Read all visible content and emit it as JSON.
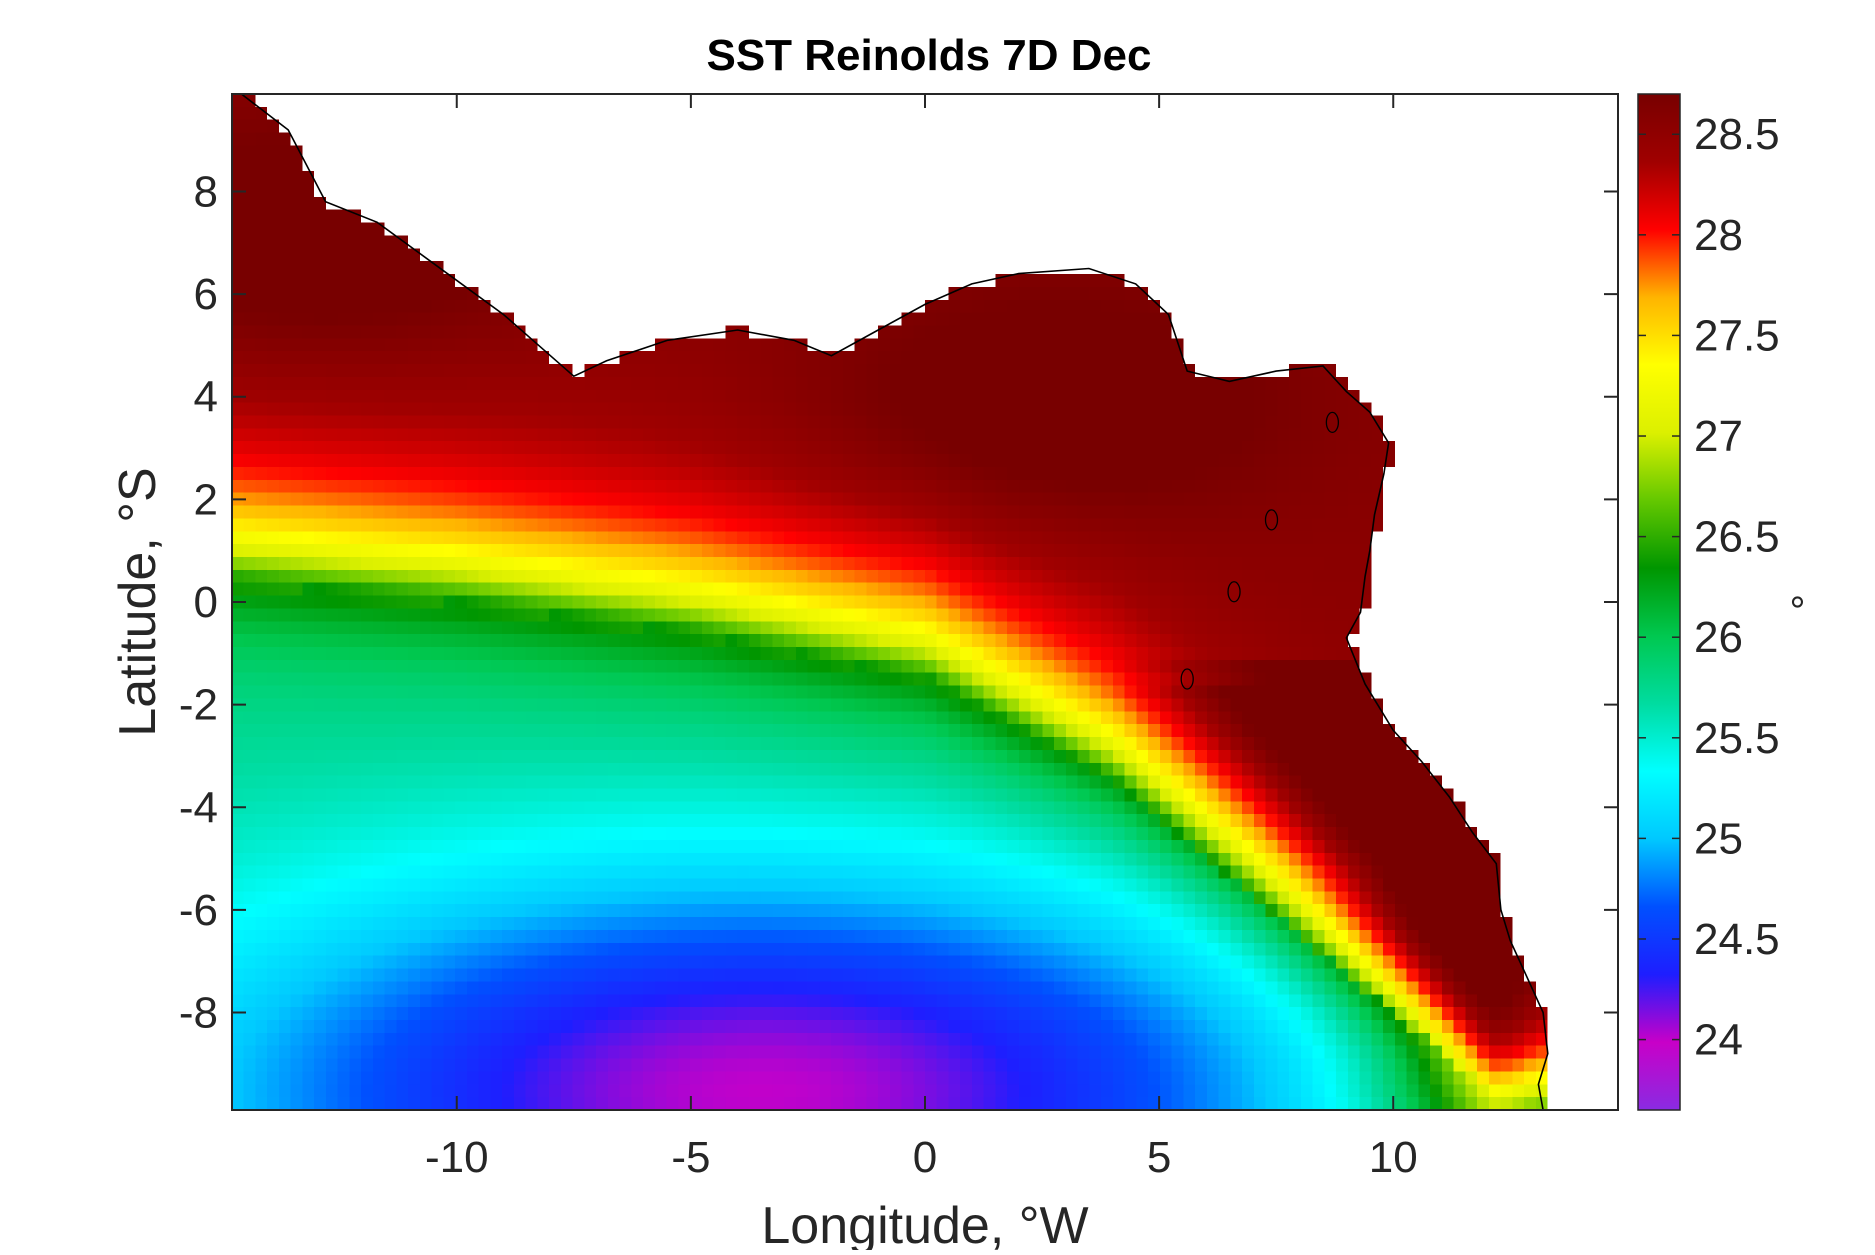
{
  "chart_data": {
    "type": "heatmap",
    "title": "SST Reinolds 7D Dec",
    "xlabel": "Longitude, °W",
    "ylabel": "Latitude, °S",
    "colorbar_label": "°",
    "xlim": [
      -14.8,
      14.8
    ],
    "ylim": [
      -9.9,
      9.9
    ],
    "xticks": [
      -10,
      -5,
      0,
      5,
      10
    ],
    "yticks": [
      -8,
      -6,
      -4,
      -2,
      0,
      2,
      4,
      6,
      8
    ],
    "clim": [
      23.65,
      28.7
    ],
    "cbar_ticks": [
      24,
      24.5,
      25,
      25.5,
      26,
      26.5,
      27,
      27.5,
      28,
      28.5
    ],
    "colormap": [
      "#8a2be2",
      "#c800c8",
      "#1e1eff",
      "#0050ff",
      "#00c8ff",
      "#00ffff",
      "#00dca0",
      "#00c850",
      "#009600",
      "#64c800",
      "#dcf000",
      "#ffff00",
      "#ffb400",
      "#ff0000",
      "#a00000",
      "#780000"
    ],
    "grid": false,
    "land_color": "#ffffff",
    "coastline_lonlat": [
      [
        -14.6,
        9.9
      ],
      [
        -13.6,
        9.2
      ],
      [
        -13.2,
        8.5
      ],
      [
        -12.8,
        7.8
      ],
      [
        -11.7,
        7.4
      ],
      [
        -10.5,
        6.6
      ],
      [
        -9.0,
        5.6
      ],
      [
        -8.0,
        4.8
      ],
      [
        -7.5,
        4.4
      ],
      [
        -6.8,
        4.7
      ],
      [
        -5.5,
        5.1
      ],
      [
        -4.0,
        5.3
      ],
      [
        -2.8,
        5.1
      ],
      [
        -2.0,
        4.8
      ],
      [
        -1.0,
        5.3
      ],
      [
        0.0,
        5.8
      ],
      [
        1.0,
        6.2
      ],
      [
        2.0,
        6.4
      ],
      [
        3.5,
        6.5
      ],
      [
        4.5,
        6.2
      ],
      [
        5.2,
        5.6
      ],
      [
        5.6,
        4.5
      ],
      [
        6.5,
        4.3
      ],
      [
        7.5,
        4.5
      ],
      [
        8.5,
        4.6
      ],
      [
        9.0,
        4.1
      ],
      [
        9.5,
        3.7
      ],
      [
        9.9,
        3.1
      ],
      [
        9.8,
        2.5
      ],
      [
        9.6,
        1.7
      ],
      [
        9.5,
        1.0
      ],
      [
        9.4,
        0.5
      ],
      [
        9.3,
        -0.2
      ],
      [
        9.0,
        -0.7
      ],
      [
        9.4,
        -1.6
      ],
      [
        10.0,
        -2.5
      ],
      [
        10.6,
        -3.1
      ],
      [
        11.2,
        -3.8
      ],
      [
        11.7,
        -4.5
      ],
      [
        12.2,
        -5.1
      ],
      [
        12.3,
        -6.0
      ],
      [
        12.5,
        -6.6
      ],
      [
        12.8,
        -7.2
      ],
      [
        13.2,
        -8.0
      ],
      [
        13.3,
        -8.8
      ],
      [
        13.1,
        -9.4
      ],
      [
        13.2,
        -9.9
      ]
    ],
    "islands_lonlat": [
      {
        "lon": 8.7,
        "lat": 3.5
      },
      {
        "lon": 7.4,
        "lat": 1.6
      },
      {
        "lon": 6.6,
        "lat": 0.2
      },
      {
        "lon": 5.6,
        "lat": -1.5
      }
    ],
    "field_features": {
      "warm_north": 28.55,
      "warm_core": [
        {
          "lon": 2.5,
          "lat": 3.8,
          "value": 28.75
        },
        {
          "lon": -13.0,
          "lat": 7.0,
          "value": 28.7
        }
      ],
      "front_lat_at_lon": [
        [
          -14.8,
          0.4
        ],
        [
          -10,
          0.0
        ],
        [
          -5,
          -0.6
        ],
        [
          0,
          -1.5
        ],
        [
          4,
          -3.5
        ],
        [
          8,
          -6.5
        ],
        [
          12,
          -9.5
        ]
      ],
      "cold_core": {
        "lon": -3.5,
        "lat": -9.5,
        "value": 23.9
      },
      "cold_tongue_value": 25.85,
      "coastal_band_value": 26.45
    }
  }
}
